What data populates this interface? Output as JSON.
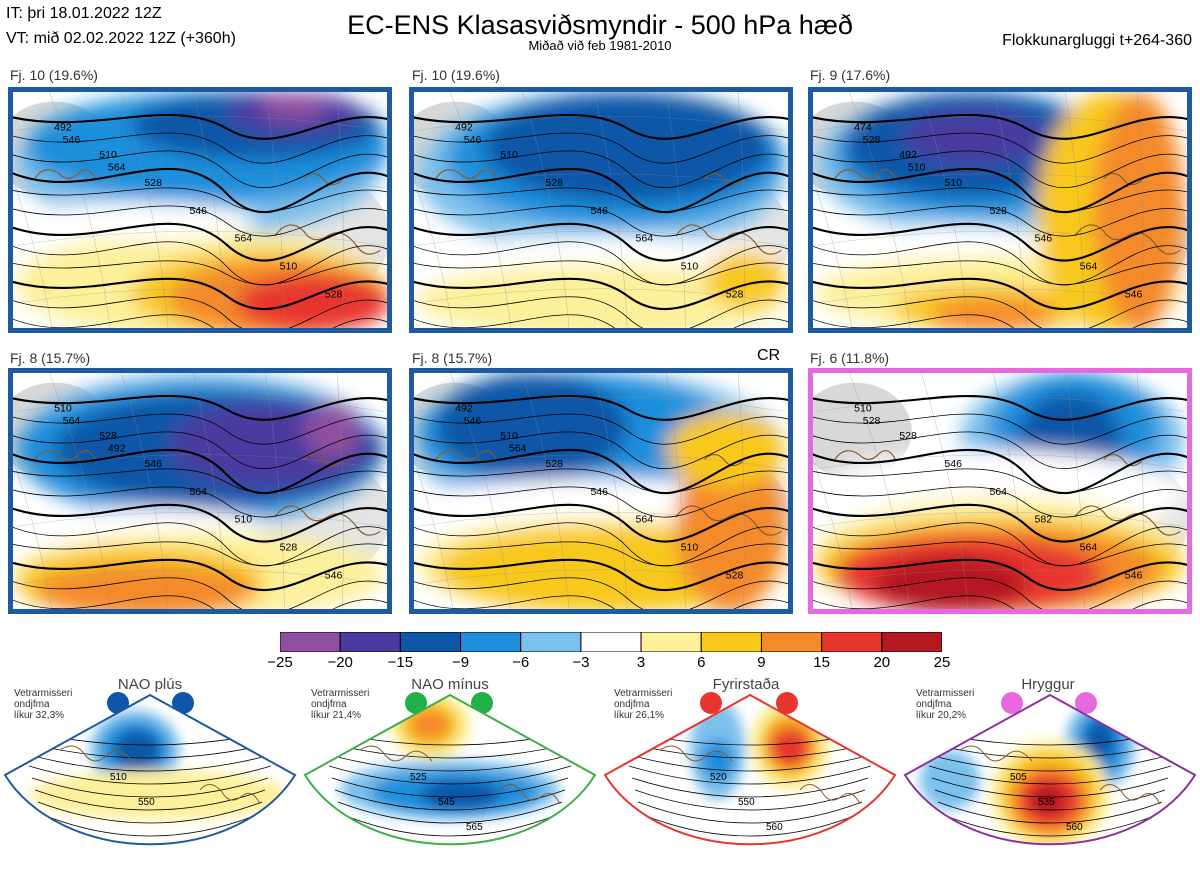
{
  "header": {
    "left_line1": "IT: þri 18.01.2022 12Z",
    "left_line2": "VT: mið 02.02.2022 12Z  (+360h)",
    "title": "EC-ENS Klasasviðsmyndir - 500 hPa hæð",
    "subtitle": "Miðað við feb 1981-2010",
    "right": "Flokkunargluggi t+264-360"
  },
  "panels": [
    {
      "label": "Fj. 10 (19.6%)",
      "border": "#1f5aa0",
      "contours": [
        "492",
        "510",
        "528",
        "546",
        "564",
        "510",
        "528",
        "546",
        "564"
      ]
    },
    {
      "label": "Fj. 10 (19.6%)",
      "border": "#1f5aa0",
      "contours": [
        "492",
        "510",
        "528",
        "546",
        "564",
        "510",
        "528",
        "546"
      ]
    },
    {
      "label": "Fj. 9 (17.6%)",
      "border": "#1f5aa0",
      "contours": [
        "474",
        "492",
        "510",
        "528",
        "546",
        "564",
        "546",
        "528",
        "510"
      ]
    },
    {
      "label": "Fj. 8 (15.7%)",
      "border": "#1f5aa0",
      "contours": [
        "510",
        "528",
        "546",
        "564",
        "510",
        "528",
        "546",
        "564",
        "492"
      ]
    },
    {
      "label": "Fj. 8 (15.7%)",
      "border": "#1f5aa0",
      "contours": [
        "492",
        "510",
        "528",
        "546",
        "564",
        "510",
        "528",
        "546",
        "564"
      ]
    },
    {
      "label": "Fj. 6 (11.8%)",
      "border": "#e868e0",
      "contours": [
        "510",
        "528",
        "546",
        "564",
        "582",
        "564",
        "546",
        "528"
      ]
    }
  ],
  "cr_label": "CR",
  "chart_data": {
    "type": "heatmap",
    "title": "EC-ENS Klasasviðsmyndir - 500 hPa hæð",
    "subtitle": "Miðað við feb 1981-2010",
    "colorbar": {
      "bounds": [
        -25,
        -20,
        -15,
        -9,
        -6,
        -3,
        3,
        6,
        9,
        15,
        20,
        25
      ],
      "tick_labels": [
        "−25",
        "−20",
        "−15",
        "−9",
        "−6",
        "−3",
        "3",
        "6",
        "9",
        "15",
        "20",
        "25"
      ],
      "colors": [
        "#8e4fa0",
        "#4a3aa0",
        "#0d56a8",
        "#1e8fdc",
        "#7cc0ec",
        "#ffffff",
        "#fdf09a",
        "#f8c81a",
        "#f48a2a",
        "#e8352e",
        "#b41820"
      ]
    },
    "clusters": [
      {
        "name": "Fj. 10",
        "percent": 19.6
      },
      {
        "name": "Fj. 10",
        "percent": 19.6
      },
      {
        "name": "Fj. 9",
        "percent": 17.6
      },
      {
        "name": "Fj. 8",
        "percent": 15.7
      },
      {
        "name": "Fj. 8",
        "percent": 15.7
      },
      {
        "name": "Fj. 6",
        "percent": 11.8
      }
    ]
  },
  "regimes": [
    {
      "name": "NAO plús",
      "note": "Vetrarmisseri\nondjfma\nlíkur 32,3%",
      "color": "#1f5aa0",
      "dot": "#0d56a8",
      "contours": [
        "510",
        "550"
      ]
    },
    {
      "name": "NAO mínus",
      "note": "Vetrarmisseri\nondjfma\nlíkur 21,4%",
      "color": "#3fae49",
      "dot": "#22b04a",
      "contours": [
        "525",
        "545",
        "565"
      ]
    },
    {
      "name": "Fyrirstaða",
      "note": "Vetrarmisseri\nondjfma\nlíkur 26,1%",
      "color": "#e8352e",
      "dot": "#e8352e",
      "contours": [
        "520",
        "550",
        "560"
      ]
    },
    {
      "name": "Hryggur",
      "note": "Vetrarmisseri\nondjfma\nlíkur 20,2%",
      "color": "#8e2ea0",
      "dot": "#e868e0",
      "contours": [
        "505",
        "535",
        "560"
      ]
    }
  ]
}
